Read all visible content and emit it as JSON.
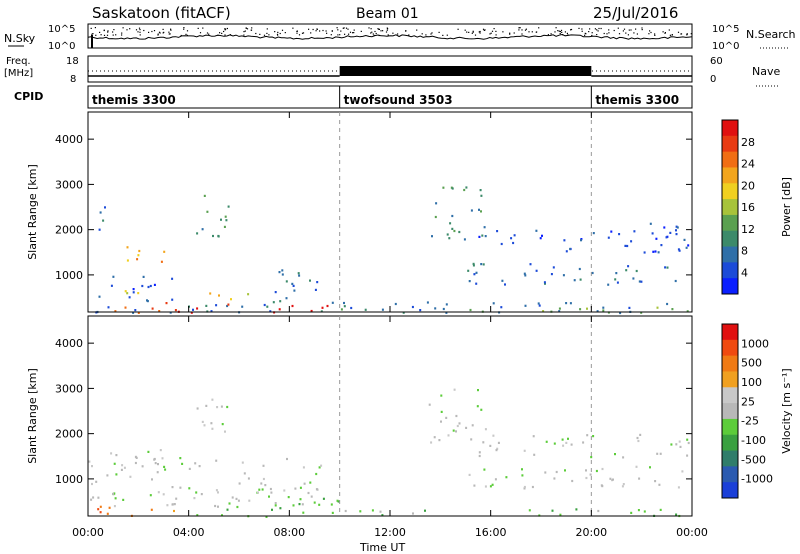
{
  "header": {
    "title": "Saskatoon (fitACF)",
    "beam": "Beam 01",
    "date": "25/Jul/2016"
  },
  "info_panels": {
    "nsky_label": "N.Sky",
    "nsky_ticks": [
      "10^5",
      "10^0"
    ],
    "nsearch_label": "N.Search",
    "nsearch_ticks": [
      "10^5",
      "10^0"
    ],
    "freq_label": "Freq.",
    "freq_unit": "[MHz]",
    "freq_ticks": [
      "18",
      "8"
    ],
    "nave_label": "Nave",
    "nave_ticks": [
      "60",
      "0"
    ],
    "cpid_label": "CPID",
    "cpid_segments": [
      {
        "name": "themis 3300",
        "start_h": 0,
        "end_h": 10
      },
      {
        "name": "twofsound 3503",
        "start_h": 10,
        "end_h": 20
      },
      {
        "name": "themis 3300",
        "start_h": 20,
        "end_h": 24
      }
    ]
  },
  "chart_data": [
    {
      "type": "heatmap",
      "name": "power",
      "ylabel": "Slant Range [km]",
      "xlabel": "",
      "x_ticks": [
        "00:00",
        "04:00",
        "08:00",
        "12:00",
        "16:00",
        "20:00",
        "00:00"
      ],
      "xlim_hours": [
        0,
        24
      ],
      "ylim_km": [
        180,
        4600
      ],
      "y_ticks": [
        "1000",
        "2000",
        "3000",
        "4000"
      ],
      "y_tick_values": [
        1000,
        2000,
        3000,
        4000
      ],
      "colorbar": {
        "label": "Power [dB]",
        "ticks": [
          "4",
          "8",
          "12",
          "16",
          "20",
          "24",
          "28"
        ],
        "colors": [
          "#0a1fff",
          "#1c4bd8",
          "#2f6fa8",
          "#3c8a6a",
          "#5aa050",
          "#a7c33a",
          "#f0d020",
          "#f3a51c",
          "#f06e14",
          "#e83a12",
          "#e01010"
        ]
      },
      "regions": [
        {
          "t0": 0.0,
          "t1": 24.0,
          "r0": 180,
          "r1": 420,
          "c": 2
        },
        {
          "t0": 0.3,
          "t1": 4.5,
          "r0": 180,
          "r1": 420,
          "c": 9
        },
        {
          "t0": 4.0,
          "t1": 9.5,
          "r0": 180,
          "r1": 380,
          "c": 10
        },
        {
          "t0": 0.3,
          "t1": 3.5,
          "r0": 420,
          "r1": 1000,
          "c": 1
        },
        {
          "t0": 0.6,
          "t1": 2.7,
          "r0": 500,
          "r1": 680,
          "c": 6
        },
        {
          "t0": 4.8,
          "t1": 6.6,
          "r0": 480,
          "r1": 720,
          "c": 6
        },
        {
          "t0": 6.8,
          "t1": 9.2,
          "r0": 420,
          "r1": 1200,
          "c": 2
        },
        {
          "t0": 1.0,
          "t1": 3.2,
          "r0": 1300,
          "r1": 1700,
          "c": 7
        },
        {
          "t0": 4.2,
          "t1": 5.6,
          "r0": 1800,
          "r1": 2800,
          "c": 3
        },
        {
          "t0": 0.2,
          "t1": 0.8,
          "r0": 1900,
          "r1": 2600,
          "c": 2
        },
        {
          "t0": 13.5,
          "t1": 15.8,
          "r0": 1800,
          "r1": 3000,
          "c": 3
        },
        {
          "t0": 15.0,
          "t1": 23.8,
          "r0": 800,
          "r1": 1300,
          "c": 2
        },
        {
          "t0": 15.5,
          "t1": 23.9,
          "r0": 1500,
          "r1": 2000,
          "c": 1
        },
        {
          "t0": 21.5,
          "t1": 23.9,
          "r0": 1700,
          "r1": 2200,
          "c": 1
        },
        {
          "t0": 9.0,
          "t1": 24.0,
          "r0": 180,
          "r1": 300,
          "c": 4
        }
      ]
    },
    {
      "type": "heatmap",
      "name": "velocity",
      "ylabel": "Slant Range [km]",
      "xlabel": "Time UT",
      "x_ticks": [
        "00:00",
        "04:00",
        "08:00",
        "12:00",
        "16:00",
        "20:00",
        "00:00"
      ],
      "xlim_hours": [
        0,
        24
      ],
      "ylim_km": [
        180,
        4600
      ],
      "y_ticks": [
        "1000",
        "2000",
        "3000",
        "4000"
      ],
      "y_tick_values": [
        1000,
        2000,
        3000,
        4000
      ],
      "colorbar": {
        "label": "Velocity [m s⁻¹]",
        "ticks": [
          "1000",
          "500",
          "100",
          "25",
          "-25",
          "-100",
          "-500",
          "-1000"
        ],
        "colors": [
          "#1a3fd8",
          "#2a5ab0",
          "#2f7d6a",
          "#39a040",
          "#5ccc3a",
          "#b8b8b8",
          "#c8c8c8",
          "#f0a020",
          "#f07a14",
          "#f04a10",
          "#e01010"
        ]
      },
      "regions": [
        {
          "t0": 0.0,
          "t1": 9.5,
          "r0": 420,
          "r1": 1500,
          "c": 5
        },
        {
          "t0": 0.3,
          "t1": 4.2,
          "r0": 180,
          "r1": 420,
          "c": 8
        },
        {
          "t0": 4.2,
          "t1": 10.0,
          "r0": 180,
          "r1": 650,
          "c": 4
        },
        {
          "t0": 0.6,
          "t1": 3.0,
          "r0": 1250,
          "r1": 1700,
          "c": 5
        },
        {
          "t0": 4.2,
          "t1": 5.6,
          "r0": 1800,
          "r1": 2800,
          "c": 5
        },
        {
          "t0": 13.5,
          "t1": 15.8,
          "r0": 1800,
          "r1": 3000,
          "c": 5
        },
        {
          "t0": 15.0,
          "t1": 23.8,
          "r0": 800,
          "r1": 1300,
          "c": 5
        },
        {
          "t0": 15.5,
          "t1": 23.9,
          "r0": 1500,
          "r1": 2000,
          "c": 5
        },
        {
          "t0": 10.0,
          "t1": 24.0,
          "r0": 180,
          "r1": 350,
          "c": 4
        }
      ]
    }
  ]
}
